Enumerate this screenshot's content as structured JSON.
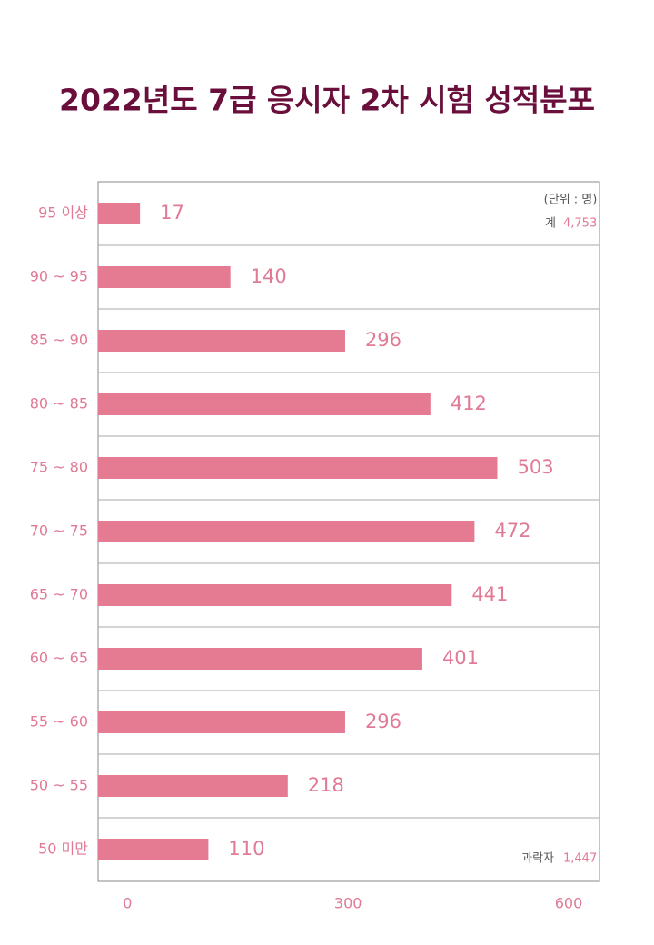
{
  "chart_data": {
    "type": "hbar",
    "title": "2022년도 7급 응시자 2차 시험 성적분포",
    "categories": [
      "95 이상",
      "90 ~ 95",
      "85 ~ 90",
      "80 ~ 85",
      "75 ~ 80",
      "70 ~ 75",
      "65 ~ 70",
      "60 ~ 65",
      "55 ~ 60",
      "50 ~ 55",
      "50 미만"
    ],
    "values": [
      17,
      140,
      296,
      412,
      503,
      472,
      441,
      401,
      296,
      218,
      110
    ],
    "color": "#e57b93",
    "xlim": [
      -40,
      642
    ],
    "xticks": [
      0,
      300,
      600
    ],
    "unit_note": "(단위 : 명)",
    "total_label": "계",
    "total_value": "4,753",
    "fail_label": "과락자",
    "fail_value": "1,447"
  }
}
